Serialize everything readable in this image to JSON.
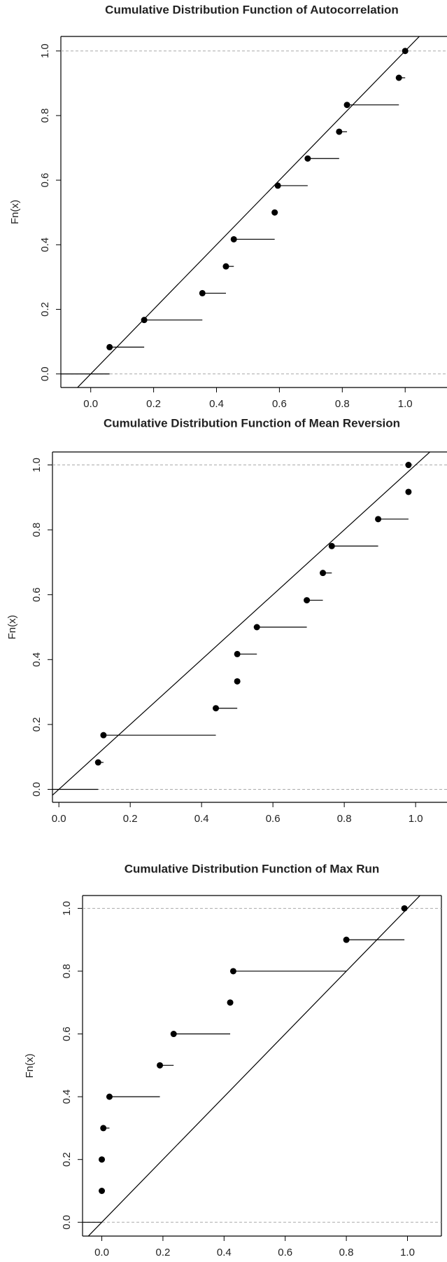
{
  "chart_data": [
    {
      "type": "ecdf",
      "title": "Cumulative Distribution Function of Autocorrelation",
      "ylabel": "Fn(x)",
      "x": [
        0.06,
        0.17,
        0.355,
        0.43,
        0.455,
        0.585,
        0.595,
        0.69,
        0.79,
        0.815,
        0.98,
        1.0
      ],
      "values": [
        0.083,
        0.167,
        0.25,
        0.333,
        0.417,
        0.5,
        0.583,
        0.667,
        0.75,
        0.833,
        0.917,
        1.0
      ],
      "xlim": [
        -0.095,
        1.133
      ],
      "ylim": [
        -0.042,
        1.045
      ],
      "xticks": [
        {
          "value": 0,
          "label": "0.0"
        },
        0.2,
        0.4,
        0.6,
        0.8,
        {
          "value": 1,
          "label": "1.0"
        }
      ],
      "yticks": [
        {
          "value": 0,
          "label": "0.0"
        },
        0.2,
        0.4,
        0.6,
        0.8,
        {
          "value": 1,
          "label": "1.0"
        }
      ],
      "color": "#000000"
    },
    {
      "type": "ecdf",
      "title": "Cumulative Distribution Function of Mean Reversion",
      "ylabel": "Fn(x)",
      "x": [
        0.11,
        0.125,
        0.44,
        0.5,
        0.5,
        0.555,
        0.695,
        0.74,
        0.765,
        0.895,
        0.98,
        0.98
      ],
      "values": [
        0.083,
        0.167,
        0.25,
        0.333,
        0.417,
        0.5,
        0.583,
        0.667,
        0.75,
        0.833,
        0.917,
        1.0
      ],
      "xlim": [
        -0.018,
        1.088
      ],
      "ylim": [
        -0.04,
        1.04
      ],
      "xticks": [
        {
          "value": 0,
          "label": "0.0"
        },
        0.2,
        0.4,
        0.6,
        0.8,
        {
          "value": 1,
          "label": "1.0"
        }
      ],
      "yticks": [
        {
          "value": 0,
          "label": "0.0"
        },
        0.2,
        0.4,
        0.6,
        0.8,
        {
          "value": 1,
          "label": "1.0"
        }
      ],
      "color": "#000000"
    },
    {
      "type": "ecdf",
      "title": "Cumulative Distribution Function of Max Run",
      "ylabel": "Fn(x)",
      "x": [
        0.0,
        0.0,
        0.005,
        0.025,
        0.19,
        0.235,
        0.42,
        0.43,
        0.8,
        0.99
      ],
      "values": [
        0.1,
        0.2,
        0.3,
        0.4,
        0.5,
        0.6,
        0.7,
        0.8,
        0.9,
        1.0
      ],
      "xlim": [
        -0.063,
        1.111
      ],
      "ylim": [
        -0.044,
        1.041
      ],
      "xticks": [
        {
          "value": 0,
          "label": "0.0"
        },
        0.2,
        0.4,
        0.6,
        0.8,
        {
          "value": 1,
          "label": "1.0"
        }
      ],
      "yticks": [
        {
          "value": 0,
          "label": "0.0"
        },
        0.2,
        0.4,
        0.6,
        0.8,
        {
          "value": 1,
          "label": "1.0"
        }
      ],
      "color": "#000000"
    }
  ]
}
